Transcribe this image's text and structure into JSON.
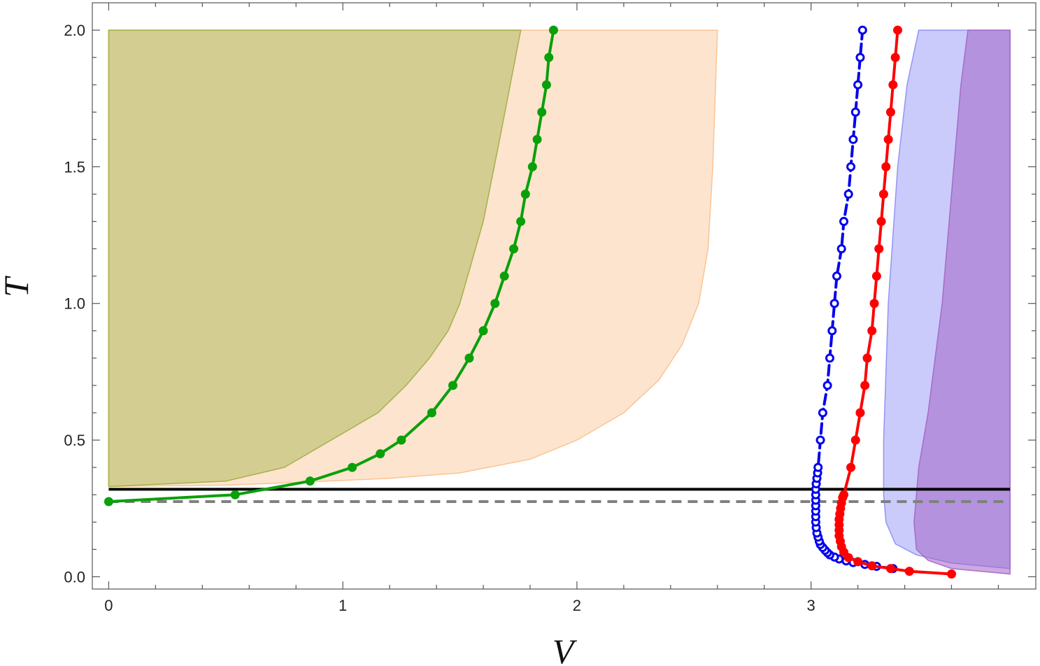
{
  "chart_data": {
    "type": "line",
    "xlabel": "V",
    "ylabel": "T",
    "xlim": [
      -0.07,
      3.96
    ],
    "ylim": [
      -0.045,
      2.1
    ],
    "xticks": [
      {
        "value": 0,
        "label": "0"
      },
      {
        "value": 1,
        "label": "1"
      },
      {
        "value": 2,
        "label": "2"
      },
      {
        "value": 3,
        "label": "3"
      }
    ],
    "yticks": [
      {
        "value": 0.0,
        "label": "0.0"
      },
      {
        "value": 0.5,
        "label": "0.5"
      },
      {
        "value": 1.0,
        "label": "1.0"
      },
      {
        "value": 1.5,
        "label": "1.5"
      },
      {
        "value": 2.0,
        "label": "2.0"
      }
    ],
    "xminor_step": 0.2,
    "yminor_step": 0.1,
    "regions": [
      {
        "name": "orange-region",
        "color": "#fbbf8b",
        "opacity": 0.42,
        "left_boundary": [
          [
            0,
            0.33
          ],
          [
            0,
            2.0
          ]
        ],
        "right_boundary": [
          [
            0.5,
            0.335
          ],
          [
            0.8,
            0.345
          ],
          [
            1.2,
            0.36
          ],
          [
            1.5,
            0.38
          ],
          [
            1.8,
            0.43
          ],
          [
            2.0,
            0.5
          ],
          [
            2.2,
            0.6
          ],
          [
            2.35,
            0.72
          ],
          [
            2.45,
            0.85
          ],
          [
            2.52,
            1.0
          ],
          [
            2.56,
            1.2
          ],
          [
            2.58,
            1.5
          ],
          [
            2.6,
            2.0
          ]
        ]
      },
      {
        "name": "olive-region",
        "color": "#9aae3f",
        "opacity": 0.42,
        "left_boundary": [
          [
            0,
            0.33
          ],
          [
            0,
            2.0
          ]
        ],
        "right_boundary": [
          [
            0.5,
            0.35
          ],
          [
            0.75,
            0.4
          ],
          [
            0.95,
            0.5
          ],
          [
            1.15,
            0.6
          ],
          [
            1.27,
            0.7
          ],
          [
            1.37,
            0.8
          ],
          [
            1.45,
            0.9
          ],
          [
            1.5,
            1.0
          ],
          [
            1.6,
            1.3
          ],
          [
            1.67,
            1.6
          ],
          [
            1.76,
            2.0
          ]
        ]
      },
      {
        "name": "blue-region",
        "color": "#8a8cf5",
        "opacity": 0.45,
        "left_boundary": [
          [
            3.31,
            0.3
          ],
          [
            3.31,
            0.5
          ],
          [
            3.33,
            1.0
          ],
          [
            3.37,
            1.5
          ],
          [
            3.41,
            1.8
          ],
          [
            3.46,
            2.0
          ]
        ],
        "right_boundary": [
          [
            3.85,
            2.0
          ],
          [
            3.85,
            0.1
          ],
          [
            3.85,
            0.03
          ]
        ],
        "bottom_boundary": [
          [
            3.31,
            0.3
          ],
          [
            3.32,
            0.2
          ],
          [
            3.36,
            0.12
          ],
          [
            3.45,
            0.08
          ],
          [
            3.6,
            0.05
          ],
          [
            3.85,
            0.03
          ]
        ]
      },
      {
        "name": "purple-region",
        "color": "#a364c6",
        "opacity": 0.55,
        "left_boundary": [
          [
            3.44,
            0.2
          ],
          [
            3.46,
            0.4
          ],
          [
            3.5,
            0.6
          ],
          [
            3.56,
            1.0
          ],
          [
            3.61,
            1.5
          ],
          [
            3.64,
            1.8
          ],
          [
            3.67,
            2.0
          ]
        ],
        "right_boundary": [
          [
            3.85,
            2.0
          ],
          [
            3.85,
            0.01
          ]
        ],
        "bottom_boundary": [
          [
            3.44,
            0.2
          ],
          [
            3.45,
            0.1
          ],
          [
            3.5,
            0.06
          ],
          [
            3.6,
            0.03
          ],
          [
            3.85,
            0.01
          ]
        ]
      }
    ],
    "hlines": [
      {
        "name": "solid-black-line",
        "y": 0.32,
        "x_range": [
          0,
          3.85
        ],
        "color": "#000000",
        "width": 4,
        "dash": ""
      },
      {
        "name": "dashed-gray-line",
        "y": 0.275,
        "x_range": [
          0,
          3.85
        ],
        "color": "#808080",
        "width": 4,
        "dash": "14 9"
      }
    ],
    "series": [
      {
        "name": "green",
        "color": "#0aa00a",
        "marker": "filled",
        "dash": "",
        "points": [
          [
            0,
            0.275
          ],
          [
            0.54,
            0.3
          ],
          [
            0.86,
            0.35
          ],
          [
            1.04,
            0.4
          ],
          [
            1.16,
            0.45
          ],
          [
            1.25,
            0.5
          ],
          [
            1.38,
            0.6
          ],
          [
            1.47,
            0.7
          ],
          [
            1.54,
            0.8
          ],
          [
            1.6,
            0.9
          ],
          [
            1.65,
            1.0
          ],
          [
            1.69,
            1.1
          ],
          [
            1.73,
            1.2
          ],
          [
            1.76,
            1.3
          ],
          [
            1.78,
            1.4
          ],
          [
            1.81,
            1.5
          ],
          [
            1.83,
            1.6
          ],
          [
            1.85,
            1.7
          ],
          [
            1.87,
            1.8
          ],
          [
            1.88,
            1.9
          ],
          [
            1.9,
            2.0
          ]
        ]
      },
      {
        "name": "blue",
        "color": "#0000ee",
        "marker": "open",
        "dash": "14 7",
        "points": [
          [
            3.35,
            0.03
          ],
          [
            3.28,
            0.038
          ],
          [
            3.23,
            0.045
          ],
          [
            3.18,
            0.052
          ],
          [
            3.15,
            0.058
          ],
          [
            3.12,
            0.065
          ],
          [
            3.1,
            0.072
          ],
          [
            3.08,
            0.08
          ],
          [
            3.07,
            0.088
          ],
          [
            3.06,
            0.097
          ],
          [
            3.05,
            0.107
          ],
          [
            3.04,
            0.118
          ],
          [
            3.035,
            0.13
          ],
          [
            3.03,
            0.145
          ],
          [
            3.025,
            0.16
          ],
          [
            3.022,
            0.18
          ],
          [
            3.02,
            0.2
          ],
          [
            3.02,
            0.22
          ],
          [
            3.02,
            0.24
          ],
          [
            3.02,
            0.26
          ],
          [
            3.02,
            0.28
          ],
          [
            3.02,
            0.3
          ],
          [
            3.02,
            0.32
          ],
          [
            3.022,
            0.34
          ],
          [
            3.025,
            0.36
          ],
          [
            3.028,
            0.38
          ],
          [
            3.03,
            0.4
          ],
          [
            3.04,
            0.5
          ],
          [
            3.05,
            0.6
          ],
          [
            3.07,
            0.7
          ],
          [
            3.08,
            0.8
          ],
          [
            3.09,
            0.9
          ],
          [
            3.1,
            1.0
          ],
          [
            3.11,
            1.1
          ],
          [
            3.13,
            1.2
          ],
          [
            3.14,
            1.3
          ],
          [
            3.16,
            1.4
          ],
          [
            3.17,
            1.5
          ],
          [
            3.18,
            1.6
          ],
          [
            3.19,
            1.7
          ],
          [
            3.2,
            1.8
          ],
          [
            3.21,
            1.9
          ],
          [
            3.22,
            2.0
          ]
        ]
      },
      {
        "name": "red",
        "color": "#ff0000",
        "marker": "filled",
        "dash": "",
        "points": [
          [
            3.6,
            0.01
          ],
          [
            3.42,
            0.02
          ],
          [
            3.34,
            0.03
          ],
          [
            3.26,
            0.04
          ],
          [
            3.2,
            0.055
          ],
          [
            3.16,
            0.07
          ],
          [
            3.14,
            0.09
          ],
          [
            3.13,
            0.11
          ],
          [
            3.125,
            0.13
          ],
          [
            3.12,
            0.15
          ],
          [
            3.12,
            0.17
          ],
          [
            3.12,
            0.19
          ],
          [
            3.12,
            0.21
          ],
          [
            3.123,
            0.23
          ],
          [
            3.126,
            0.25
          ],
          [
            3.13,
            0.27
          ],
          [
            3.135,
            0.29
          ],
          [
            3.14,
            0.3
          ],
          [
            3.17,
            0.4
          ],
          [
            3.19,
            0.5
          ],
          [
            3.21,
            0.6
          ],
          [
            3.23,
            0.7
          ],
          [
            3.24,
            0.8
          ],
          [
            3.26,
            0.9
          ],
          [
            3.27,
            1.0
          ],
          [
            3.28,
            1.1
          ],
          [
            3.29,
            1.2
          ],
          [
            3.3,
            1.3
          ],
          [
            3.31,
            1.4
          ],
          [
            3.32,
            1.5
          ],
          [
            3.33,
            1.6
          ],
          [
            3.34,
            1.7
          ],
          [
            3.35,
            1.8
          ],
          [
            3.36,
            1.9
          ],
          [
            3.37,
            2.0
          ]
        ]
      }
    ]
  }
}
